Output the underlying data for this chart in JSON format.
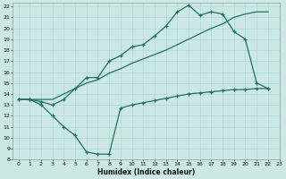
{
  "xlabel": "Humidex (Indice chaleur)",
  "xlim": [
    -0.5,
    23
  ],
  "ylim": [
    8,
    22.3
  ],
  "xticks": [
    0,
    1,
    2,
    3,
    4,
    5,
    6,
    7,
    8,
    9,
    10,
    11,
    12,
    13,
    14,
    15,
    16,
    17,
    18,
    19,
    20,
    21,
    22,
    23
  ],
  "yticks": [
    8,
    9,
    10,
    11,
    12,
    13,
    14,
    15,
    16,
    17,
    18,
    19,
    20,
    21,
    22
  ],
  "bg_color": "#cce8e4",
  "grid_color": "#b0d8d2",
  "line_color": "#1e7068",
  "line1_x": [
    0,
    1,
    2,
    3,
    4,
    5,
    6,
    7,
    8,
    9,
    10,
    11,
    12,
    13,
    14,
    15,
    16,
    17,
    18,
    19,
    20,
    21,
    22
  ],
  "line1_y": [
    13.5,
    13.5,
    13.5,
    13.5,
    14.0,
    14.5,
    15.0,
    15.3,
    15.9,
    16.3,
    16.8,
    17.2,
    17.6,
    18.0,
    18.5,
    19.0,
    19.5,
    20.0,
    20.4,
    21.0,
    21.3,
    21.5,
    21.5
  ],
  "line2_x": [
    0,
    1,
    2,
    3,
    4,
    5,
    6,
    7,
    8,
    9,
    10,
    11,
    12,
    13,
    14,
    15,
    16,
    17,
    18,
    19,
    20,
    21,
    22
  ],
  "line2_y": [
    13.5,
    13.5,
    13.3,
    13.0,
    13.5,
    14.5,
    15.5,
    15.5,
    17.0,
    17.5,
    18.3,
    18.5,
    19.3,
    20.2,
    21.5,
    22.1,
    21.2,
    21.5,
    21.3,
    19.7,
    19.0,
    15.0,
    14.5
  ],
  "line3_x": [
    0,
    1,
    2,
    3,
    4,
    5,
    6,
    7,
    8,
    9,
    10,
    11,
    12,
    13,
    14,
    15,
    16,
    17,
    18,
    19,
    20,
    21,
    22
  ],
  "line3_y": [
    13.5,
    13.5,
    13.0,
    12.0,
    11.0,
    10.2,
    8.7,
    8.5,
    8.5,
    12.7,
    13.0,
    13.2,
    13.4,
    13.6,
    13.8,
    14.0,
    14.1,
    14.2,
    14.3,
    14.4,
    14.4,
    14.5,
    14.5
  ]
}
